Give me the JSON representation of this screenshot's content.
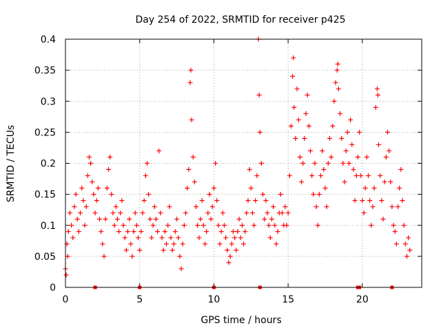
{
  "chart_data": {
    "type": "scatter",
    "title": "Day 254 of 2022, SRMTID for receiver p425",
    "xlabel": "GPS time / hours",
    "ylabel": "SRMTID / TECUs",
    "xlim": [
      0,
      24
    ],
    "ylim": [
      0,
      0.4
    ],
    "xticks": [
      0,
      5,
      10,
      15,
      20
    ],
    "xtick_labels": [
      "0",
      "5",
      "10",
      "15",
      "20"
    ],
    "yticks": [
      0,
      0.05,
      0.1,
      0.15,
      0.2,
      0.25,
      0.3,
      0.35,
      0.4
    ],
    "ytick_labels": [
      "0",
      "0.05",
      "0.1",
      "0.15",
      "0.2",
      "0.25",
      "0.3",
      "0.35",
      "0.4"
    ],
    "grid": true,
    "marker": "plus",
    "series": [
      {
        "name": "SRMTID",
        "color": "#ff0000",
        "points": [
          [
            0.0,
            0.03
          ],
          [
            0.05,
            0.02
          ],
          [
            0.1,
            0.07
          ],
          [
            0.15,
            0.05
          ],
          [
            0.2,
            0.09
          ],
          [
            0.3,
            0.12
          ],
          [
            0.4,
            0.1
          ],
          [
            0.5,
            0.08
          ],
          [
            0.6,
            0.13
          ],
          [
            0.7,
            0.15
          ],
          [
            0.8,
            0.11
          ],
          [
            0.9,
            0.09
          ],
          [
            1.0,
            0.12
          ],
          [
            1.1,
            0.16
          ],
          [
            1.2,
            0.14
          ],
          [
            1.3,
            0.1
          ],
          [
            1.4,
            0.13
          ],
          [
            1.5,
            0.18
          ],
          [
            1.6,
            0.21
          ],
          [
            1.7,
            0.2
          ],
          [
            1.8,
            0.17
          ],
          [
            1.9,
            0.15
          ],
          [
            2.0,
            0.12
          ],
          [
            2.1,
            0.14
          ],
          [
            2.2,
            0.16
          ],
          [
            2.3,
            0.11
          ],
          [
            2.4,
            0.09
          ],
          [
            2.5,
            0.07
          ],
          [
            2.6,
            0.05
          ],
          [
            2.7,
            0.11
          ],
          [
            2.8,
            0.16
          ],
          [
            2.9,
            0.19
          ],
          [
            3.0,
            0.21
          ],
          [
            3.1,
            0.15
          ],
          [
            3.2,
            0.12
          ],
          [
            3.3,
            0.1
          ],
          [
            3.4,
            0.13
          ],
          [
            3.5,
            0.11
          ],
          [
            3.6,
            0.09
          ],
          [
            3.7,
            0.12
          ],
          [
            3.8,
            0.14
          ],
          [
            3.9,
            0.1
          ],
          [
            4.0,
            0.08
          ],
          [
            4.1,
            0.06
          ],
          [
            4.2,
            0.09
          ],
          [
            4.3,
            0.11
          ],
          [
            4.4,
            0.07
          ],
          [
            4.5,
            0.05
          ],
          [
            4.6,
            0.09
          ],
          [
            4.7,
            0.12
          ],
          [
            4.8,
            0.1
          ],
          [
            4.9,
            0.08
          ],
          [
            5.0,
            0.06
          ],
          [
            5.1,
            0.09
          ],
          [
            5.2,
            0.12
          ],
          [
            5.3,
            0.14
          ],
          [
            5.4,
            0.18
          ],
          [
            5.5,
            0.2
          ],
          [
            5.6,
            0.15
          ],
          [
            5.7,
            0.11
          ],
          [
            5.8,
            0.08
          ],
          [
            5.9,
            0.1
          ],
          [
            6.0,
            0.13
          ],
          [
            6.1,
            0.11
          ],
          [
            6.2,
            0.09
          ],
          [
            6.3,
            0.22
          ],
          [
            6.4,
            0.12
          ],
          [
            6.5,
            0.08
          ],
          [
            6.6,
            0.06
          ],
          [
            6.7,
            0.09
          ],
          [
            6.8,
            0.07
          ],
          [
            6.9,
            0.1
          ],
          [
            7.0,
            0.13
          ],
          [
            7.1,
            0.08
          ],
          [
            7.2,
            0.06
          ],
          [
            7.3,
            0.07
          ],
          [
            7.4,
            0.09
          ],
          [
            7.5,
            0.11
          ],
          [
            7.6,
            0.08
          ],
          [
            7.7,
            0.05
          ],
          [
            7.8,
            0.03
          ],
          [
            7.9,
            0.07
          ],
          [
            8.0,
            0.1
          ],
          [
            8.1,
            0.12
          ],
          [
            8.2,
            0.16
          ],
          [
            8.3,
            0.19
          ],
          [
            8.4,
            0.33
          ],
          [
            8.45,
            0.35
          ],
          [
            8.5,
            0.27
          ],
          [
            8.6,
            0.21
          ],
          [
            8.7,
            0.17
          ],
          [
            8.8,
            0.13
          ],
          [
            8.9,
            0.1
          ],
          [
            9.0,
            0.08
          ],
          [
            9.1,
            0.11
          ],
          [
            9.2,
            0.14
          ],
          [
            9.3,
            0.1
          ],
          [
            9.4,
            0.07
          ],
          [
            9.5,
            0.09
          ],
          [
            9.6,
            0.12
          ],
          [
            9.7,
            0.15
          ],
          [
            9.8,
            0.11
          ],
          [
            9.9,
            0.13
          ],
          [
            10.0,
            0.16
          ],
          [
            10.1,
            0.2
          ],
          [
            10.2,
            0.14
          ],
          [
            10.3,
            0.1
          ],
          [
            10.4,
            0.07
          ],
          [
            10.5,
            0.09
          ],
          [
            10.6,
            0.12
          ],
          [
            10.7,
            0.1
          ],
          [
            10.8,
            0.08
          ],
          [
            10.9,
            0.06
          ],
          [
            11.0,
            0.04
          ],
          [
            11.1,
            0.05
          ],
          [
            11.2,
            0.07
          ],
          [
            11.3,
            0.09
          ],
          [
            11.4,
            0.08
          ],
          [
            11.5,
            0.06
          ],
          [
            11.6,
            0.09
          ],
          [
            11.7,
            0.11
          ],
          [
            11.8,
            0.08
          ],
          [
            11.9,
            0.1
          ],
          [
            12.0,
            0.07
          ],
          [
            12.1,
            0.09
          ],
          [
            12.2,
            0.12
          ],
          [
            12.3,
            0.14
          ],
          [
            12.4,
            0.19
          ],
          [
            12.5,
            0.16
          ],
          [
            12.6,
            0.12
          ],
          [
            12.7,
            0.1
          ],
          [
            12.8,
            0.14
          ],
          [
            12.9,
            0.18
          ],
          [
            13.0,
            0.4
          ],
          [
            13.05,
            0.31
          ],
          [
            13.1,
            0.25
          ],
          [
            13.2,
            0.2
          ],
          [
            13.3,
            0.15
          ],
          [
            13.4,
            0.11
          ],
          [
            13.5,
            0.14
          ],
          [
            13.6,
            0.12
          ],
          [
            13.7,
            0.1
          ],
          [
            13.8,
            0.08
          ],
          [
            13.9,
            0.11
          ],
          [
            14.0,
            0.13
          ],
          [
            14.1,
            0.1
          ],
          [
            14.2,
            0.07
          ],
          [
            14.3,
            0.09
          ],
          [
            14.4,
            0.12
          ],
          [
            14.5,
            0.15
          ],
          [
            14.6,
            0.12
          ],
          [
            14.7,
            0.1
          ],
          [
            14.8,
            0.13
          ],
          [
            14.9,
            0.1
          ],
          [
            15.0,
            0.12
          ],
          [
            15.1,
            0.18
          ],
          [
            15.2,
            0.26
          ],
          [
            15.3,
            0.34
          ],
          [
            15.35,
            0.37
          ],
          [
            15.4,
            0.29
          ],
          [
            15.5,
            0.24
          ],
          [
            15.6,
            0.32
          ],
          [
            15.7,
            0.27
          ],
          [
            15.8,
            0.21
          ],
          [
            15.9,
            0.17
          ],
          [
            16.0,
            0.2
          ],
          [
            16.1,
            0.24
          ],
          [
            16.2,
            0.28
          ],
          [
            16.3,
            0.31
          ],
          [
            16.4,
            0.26
          ],
          [
            16.5,
            0.22
          ],
          [
            16.6,
            0.18
          ],
          [
            16.7,
            0.15
          ],
          [
            16.8,
            0.2
          ],
          [
            16.9,
            0.13
          ],
          [
            17.0,
            0.1
          ],
          [
            17.1,
            0.15
          ],
          [
            17.2,
            0.18
          ],
          [
            17.3,
            0.22
          ],
          [
            17.4,
            0.19
          ],
          [
            17.5,
            0.16
          ],
          [
            17.6,
            0.13
          ],
          [
            17.7,
            0.2
          ],
          [
            17.8,
            0.24
          ],
          [
            17.9,
            0.21
          ],
          [
            18.0,
            0.26
          ],
          [
            18.1,
            0.3
          ],
          [
            18.2,
            0.33
          ],
          [
            18.3,
            0.35
          ],
          [
            18.35,
            0.36
          ],
          [
            18.4,
            0.32
          ],
          [
            18.5,
            0.28
          ],
          [
            18.6,
            0.24
          ],
          [
            18.7,
            0.2
          ],
          [
            18.8,
            0.17
          ],
          [
            18.9,
            0.22
          ],
          [
            19.0,
            0.25
          ],
          [
            19.1,
            0.2
          ],
          [
            19.2,
            0.27
          ],
          [
            19.3,
            0.23
          ],
          [
            19.4,
            0.19
          ],
          [
            19.5,
            0.14
          ],
          [
            19.6,
            0.18
          ],
          [
            19.7,
            0.21
          ],
          [
            19.8,
            0.25
          ],
          [
            19.9,
            0.18
          ],
          [
            20.0,
            0.14
          ],
          [
            20.1,
            0.12
          ],
          [
            20.2,
            0.16
          ],
          [
            20.3,
            0.21
          ],
          [
            20.4,
            0.18
          ],
          [
            20.5,
            0.14
          ],
          [
            20.6,
            0.1
          ],
          [
            20.7,
            0.13
          ],
          [
            20.8,
            0.16
          ],
          [
            20.9,
            0.29
          ],
          [
            21.0,
            0.32
          ],
          [
            21.05,
            0.31
          ],
          [
            21.1,
            0.23
          ],
          [
            21.2,
            0.18
          ],
          [
            21.3,
            0.14
          ],
          [
            21.4,
            0.11
          ],
          [
            21.5,
            0.17
          ],
          [
            21.6,
            0.21
          ],
          [
            21.7,
            0.25
          ],
          [
            21.8,
            0.22
          ],
          [
            21.9,
            0.17
          ],
          [
            22.0,
            0.13
          ],
          [
            22.1,
            0.1
          ],
          [
            22.2,
            0.09
          ],
          [
            22.3,
            0.07
          ],
          [
            22.4,
            0.13
          ],
          [
            22.5,
            0.16
          ],
          [
            22.6,
            0.19
          ],
          [
            22.7,
            0.14
          ],
          [
            22.8,
            0.1
          ],
          [
            22.9,
            0.07
          ],
          [
            23.0,
            0.05
          ],
          [
            23.1,
            0.08
          ],
          [
            23.2,
            0.06
          ]
        ]
      }
    ],
    "annotations": [
      {
        "x": 2.0,
        "y": 0.0
      },
      {
        "x": 5.0,
        "y": 0.0
      },
      {
        "x": 10.0,
        "y": 0.0
      },
      {
        "x": 13.1,
        "y": 0.0
      },
      {
        "x": 19.7,
        "y": 0.0
      },
      {
        "x": 19.8,
        "y": 0.0
      },
      {
        "x": 22.0,
        "y": 0.0
      }
    ]
  }
}
